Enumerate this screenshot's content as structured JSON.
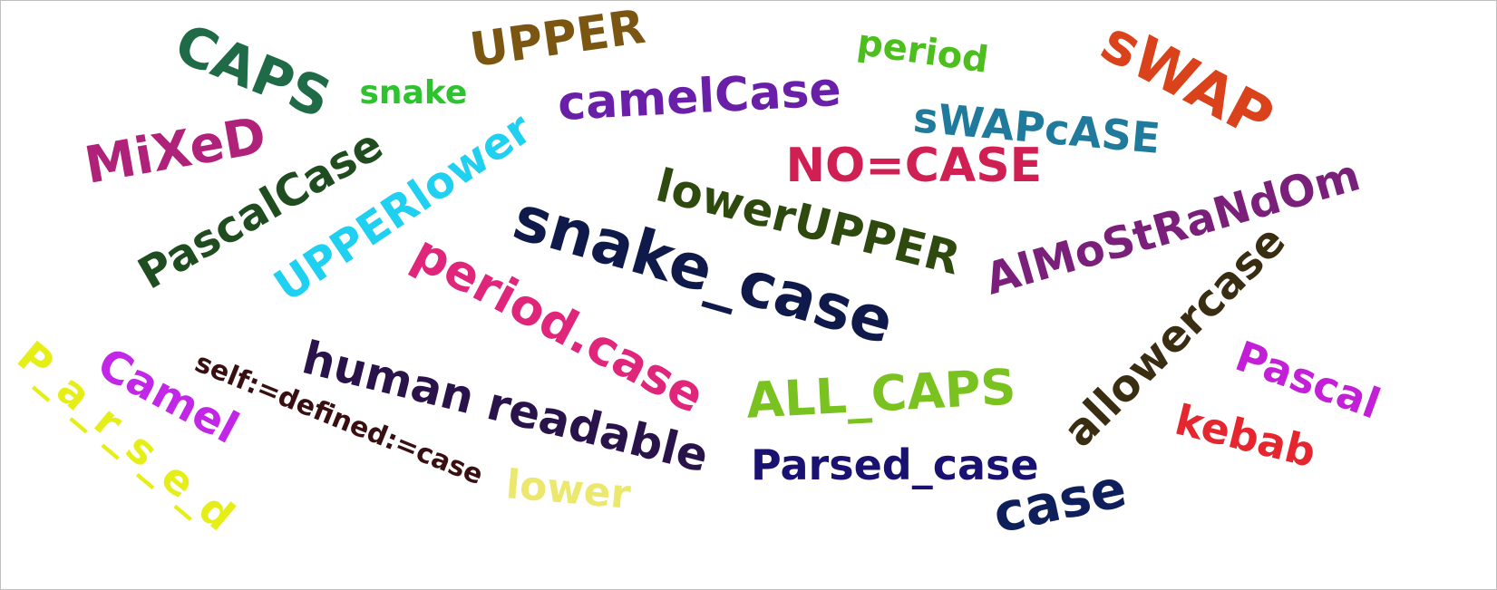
{
  "words": [
    {
      "text": "CAPS",
      "color": "#1f6b47"
    },
    {
      "text": "snake",
      "color": "#2ec22e"
    },
    {
      "text": "UPPER",
      "color": "#7a5612"
    },
    {
      "text": "period",
      "color": "#4cbf1f"
    },
    {
      "text": "sWAP",
      "color": "#d9421a"
    },
    {
      "text": "MiXeD",
      "color": "#b0217a"
    },
    {
      "text": "camelCase",
      "color": "#6a1fa8"
    },
    {
      "text": "sWAPcASE",
      "color": "#1f7a9c"
    },
    {
      "text": "PascalCase",
      "color": "#1f4d1f"
    },
    {
      "text": "UPPERlower",
      "color": "#1fd0f0"
    },
    {
      "text": "NO=CASE",
      "color": "#d01f52"
    },
    {
      "text": "lowerUPPER",
      "color": "#2e4a0f"
    },
    {
      "text": "snake_case",
      "color": "#0f1a4a"
    },
    {
      "text": "AlMoStRaNdOm",
      "color": "#7a1f7a"
    },
    {
      "text": "period.case",
      "color": "#e0267a"
    },
    {
      "text": "allowercase",
      "color": "#3a2e12"
    },
    {
      "text": "P_a_r_s_e_d",
      "color": "#e5ef17"
    },
    {
      "text": "Camel",
      "color": "#c226e6"
    },
    {
      "text": "self:=defined:=case",
      "color": "#3a0f12"
    },
    {
      "text": "human readable",
      "color": "#2a124a"
    },
    {
      "text": "ALL_CAPS",
      "color": "#7ac21f"
    },
    {
      "text": "Pascal",
      "color": "#c21fd6"
    },
    {
      "text": "kebab",
      "color": "#e6262e"
    },
    {
      "text": "Parsed_case",
      "color": "#1a1270"
    },
    {
      "text": "lower",
      "color": "#ece86e"
    },
    {
      "text": "case",
      "color": "#0f1f5c"
    }
  ]
}
